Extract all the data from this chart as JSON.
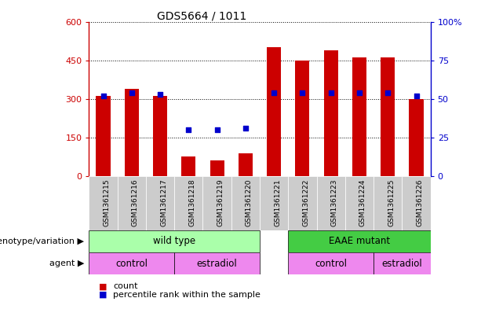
{
  "title": "GDS5664 / 1011",
  "samples": [
    "GSM1361215",
    "GSM1361216",
    "GSM1361217",
    "GSM1361218",
    "GSM1361219",
    "GSM1361220",
    "GSM1361221",
    "GSM1361222",
    "GSM1361223",
    "GSM1361224",
    "GSM1361225",
    "GSM1361226"
  ],
  "counts": [
    310,
    340,
    310,
    75,
    60,
    90,
    500,
    450,
    490,
    460,
    460,
    300
  ],
  "percentile_ranks": [
    52,
    54,
    53,
    30,
    30,
    31,
    54,
    54,
    54,
    54,
    54,
    52
  ],
  "left_ylim": [
    0,
    600
  ],
  "left_yticks": [
    0,
    150,
    300,
    450,
    600
  ],
  "right_ylim": [
    0,
    100
  ],
  "right_yticks": [
    0,
    25,
    50,
    75,
    100
  ],
  "right_yticklabels": [
    "0",
    "25",
    "50",
    "75",
    "100%"
  ],
  "bar_color": "#cc0000",
  "dot_color": "#0000cc",
  "left_tick_color": "#cc0000",
  "right_tick_color": "#0000cc",
  "xtick_bg": "#cccccc",
  "wt_color": "#aaffaa",
  "eaae_color": "#44cc44",
  "agent_color": "#ee88ee",
  "legend_count_label": "count",
  "legend_percentile_label": "percentile rank within the sample",
  "bg_color": "#ffffff"
}
